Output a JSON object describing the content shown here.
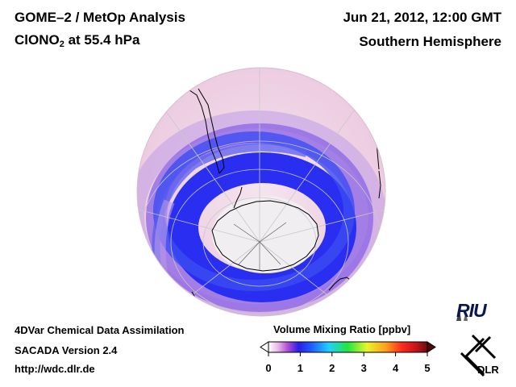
{
  "header": {
    "title": "GOME–2 / MetOp Analysis",
    "species_prefix": "ClONO",
    "species_subscript": "2",
    "species_suffix": " at 55.4 hPa",
    "date": "Jun 21, 2012, 12:00 GMT",
    "hemisphere": "Southern Hemisphere"
  },
  "footer": {
    "line1": "4DVar Chemical Data Assimilation",
    "line2": "SACADA Version 2.4",
    "line3": "http://wdc.dlr.de"
  },
  "colorbar": {
    "title": "Volume Mixing Ratio [ppbv]",
    "ticks": [
      "0",
      "1",
      "2",
      "3",
      "4",
      "5"
    ],
    "tick_values": [
      0,
      1,
      2,
      3,
      4,
      5
    ],
    "range": [
      0,
      5
    ],
    "stops": [
      "#ffffff",
      "#e9b7e9",
      "#b24fd6",
      "#2a1ee8",
      "#1f5cff",
      "#1fd0ff",
      "#22e640",
      "#e8f52a",
      "#ff9e1c",
      "#ff2a1c",
      "#c4141a",
      "#6b0c10"
    ]
  },
  "logos": {
    "riu": "RIU",
    "dlr": "DLR"
  },
  "colors": {
    "background": "#ffffff",
    "disk_base": "#f1dce9",
    "antarctica": "#f1eef2",
    "coastline": "#000000",
    "graticule": "#c8c8c8"
  }
}
